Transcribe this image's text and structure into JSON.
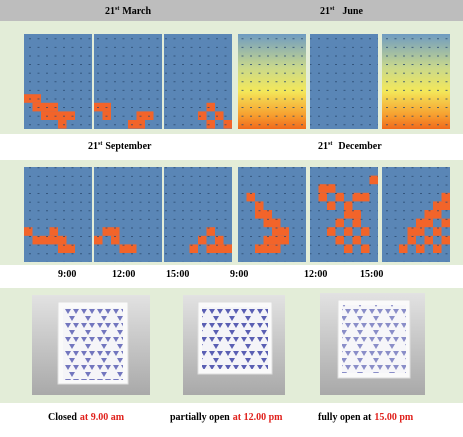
{
  "header": {
    "march": {
      "day": "21",
      "suffix": "st",
      "month": "March"
    },
    "june": {
      "day": "21",
      "suffix": "st",
      "month": "June"
    }
  },
  "middle": {
    "september": {
      "day": "21",
      "suffix": "st",
      "month": "September"
    },
    "december": {
      "day": "21",
      "suffix": "st",
      "month": "December"
    }
  },
  "times": [
    "9:00",
    "12:00",
    "15:00",
    "9:00",
    "12:00",
    "15:00"
  ],
  "captions": [
    {
      "text": "Closed",
      "highlight": "at 9.00 am"
    },
    {
      "text": "partially open",
      "highlight": "at 12.00 pm"
    },
    {
      "text": "fully open at",
      "highlight": "15.00 pm"
    }
  ]
}
